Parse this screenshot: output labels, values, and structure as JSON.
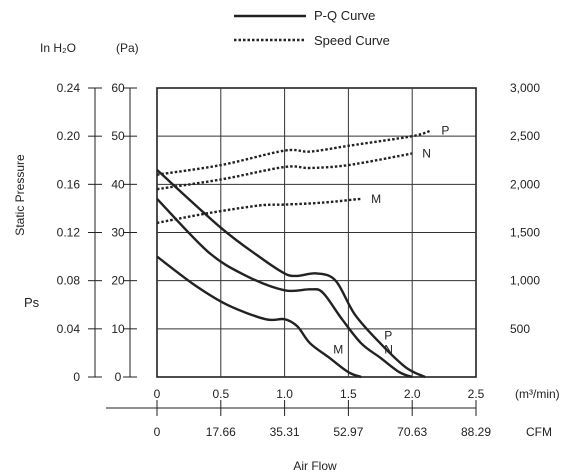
{
  "chart_data": {
    "type": "line",
    "legend": [
      {
        "label": "P-Q Curve",
        "style": "solid"
      },
      {
        "label": "Speed Curve",
        "style": "dotted"
      }
    ],
    "left_axis_units": {
      "inh2o": "In H₂O",
      "pa": "(Pa)"
    },
    "ylabel": "Static Pressure",
    "ylabel_short": "Ps",
    "xlabel": "Air Flow",
    "x_unit_m3": "(m³/min)",
    "x_unit_cfm": "CFM",
    "xlim": [
      0,
      2.5
    ],
    "ylim_pa": [
      0,
      60
    ],
    "ylim_rpm": [
      0,
      3000
    ],
    "grid": true,
    "x_ticks_m3": [
      "0",
      "0.5",
      "1.0",
      "1.5",
      "2.0",
      "2.5"
    ],
    "x_ticks_cfm": [
      "0",
      "17.66",
      "35.31",
      "52.97",
      "70.63",
      "88.29"
    ],
    "y_ticks_inh2o": [
      "0",
      "0.04",
      "0.08",
      "0.12",
      "0.16",
      "0.20",
      "0.24"
    ],
    "y_ticks_pa": [
      "0",
      "10",
      "20",
      "30",
      "40",
      "50",
      "60"
    ],
    "y_ticks_rpm": [
      "",
      "500",
      "1,000",
      "1,500",
      "2,000",
      "2,500",
      "3,000"
    ],
    "pq_series": [
      {
        "name": "P",
        "x": [
          0,
          0.5,
          0.8,
          1.0,
          1.1,
          1.25,
          1.4,
          1.55,
          1.75,
          1.95,
          2.1
        ],
        "y": [
          43,
          31,
          25,
          21.5,
          21,
          21.5,
          20,
          13,
          7,
          2,
          0
        ]
      },
      {
        "name": "N",
        "x": [
          0,
          0.4,
          0.7,
          1.0,
          1.2,
          1.3,
          1.45,
          1.6,
          1.75,
          1.9,
          2.0
        ],
        "y": [
          37,
          26,
          21,
          18,
          18.2,
          17.5,
          12,
          7,
          4,
          1,
          0
        ]
      },
      {
        "name": "M",
        "x": [
          0,
          0.3,
          0.55,
          0.85,
          1.0,
          1.1,
          1.2,
          1.35,
          1.5,
          1.6
        ],
        "y": [
          25,
          19,
          15,
          12,
          12,
          10.5,
          7,
          4,
          1,
          0
        ]
      }
    ],
    "speed_series": [
      {
        "name": "P",
        "x": [
          0,
          0.5,
          1.0,
          1.2,
          1.5,
          2.0,
          2.15
        ],
        "rpm": [
          2100,
          2200,
          2350,
          2340,
          2400,
          2500,
          2560
        ]
      },
      {
        "name": "N",
        "x": [
          0,
          0.5,
          1.0,
          1.2,
          1.5,
          2.0
        ],
        "rpm": [
          1950,
          2050,
          2180,
          2170,
          2200,
          2320
        ]
      },
      {
        "name": "M",
        "x": [
          0,
          0.4,
          0.8,
          1.0,
          1.3,
          1.6
        ],
        "rpm": [
          1600,
          1700,
          1780,
          1790,
          1810,
          1850
        ]
      }
    ]
  }
}
